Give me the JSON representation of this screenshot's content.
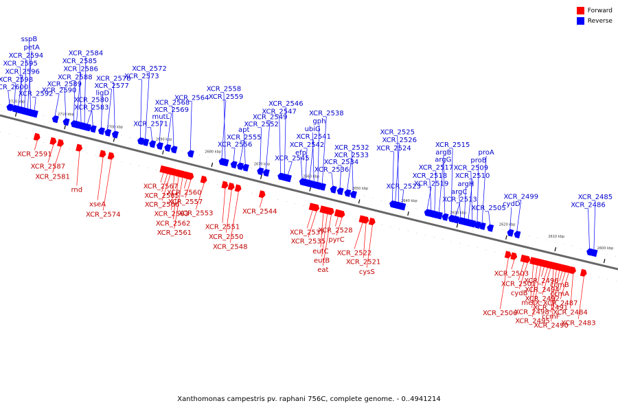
{
  "legend": {
    "forward": {
      "label": "Forward",
      "color": "#ff0000"
    },
    "reverse": {
      "label": "Reverse",
      "color": "#0000ff"
    }
  },
  "caption": "Xanthomonas campestris pv. raphani 756C, complete genome. - 0..4941214",
  "scale": {
    "kbp_start": 2723,
    "kbp_end": 2597,
    "ticks": [
      "2720 kbp",
      "2710 kbp",
      "2700 kbp",
      "2690 kbp",
      "2680 kbp",
      "2670 kbp",
      "2660 kbp",
      "2650 kbp",
      "2640 kbp",
      "2630 kbp",
      "2620 kbp",
      "2610 kbp",
      "2600 kbp"
    ]
  },
  "reverse_genes": [
    {
      "name": "XCR_2600",
      "kbp": 2721.6
    },
    {
      "name": "XCR_2598",
      "kbp": 2720.6
    },
    {
      "name": "XCR_2596",
      "kbp": 2719.8
    },
    {
      "name": "XCR_2595",
      "kbp": 2719.1
    },
    {
      "name": "XCR_2594",
      "kbp": 2718.5
    },
    {
      "name": "petA",
      "kbp": 2717.9
    },
    {
      "name": "sspB",
      "kbp": 2717.3
    },
    {
      "name": "XCR_2592",
      "kbp": 2716.5
    },
    {
      "name": "XCR_2590",
      "kbp": 2712.3
    },
    {
      "name": "XCR_2589",
      "kbp": 2710.1
    },
    {
      "name": "XCR_2588",
      "kbp": 2708.5
    },
    {
      "name": "XCR_2586",
      "kbp": 2707.9
    },
    {
      "name": "XCR_2585",
      "kbp": 2707.0
    },
    {
      "name": "XCR_2584",
      "kbp": 2706.3
    },
    {
      "name": "XCR_2583",
      "kbp": 2705.7
    },
    {
      "name": "XCR_2580",
      "kbp": 2704.6
    },
    {
      "name": "ligD",
      "kbp": 2702.9
    },
    {
      "name": "XCR_2577",
      "kbp": 2701.6
    },
    {
      "name": "XCR_2576",
      "kbp": 2700.1
    },
    {
      "name": "XCR_2573",
      "kbp": 2694.9
    },
    {
      "name": "XCR_2572",
      "kbp": 2693.9
    },
    {
      "name": "XCR_2571",
      "kbp": 2692.5
    },
    {
      "name": "mutL",
      "kbp": 2691.0
    },
    {
      "name": "XCR_2569",
      "kbp": 2689.4
    },
    {
      "name": "XCR_2568",
      "kbp": 2688.1
    },
    {
      "name": "XCR_2564",
      "kbp": 2684.7
    },
    {
      "name": "XCR_2559",
      "kbp": 2678.3
    },
    {
      "name": "XCR_2558",
      "kbp": 2677.6
    },
    {
      "name": "XCR_2556",
      "kbp": 2675.9
    },
    {
      "name": "XCR_2555",
      "kbp": 2674.6
    },
    {
      "name": "apt",
      "kbp": 2673.5
    },
    {
      "name": "XCR_2552",
      "kbp": 2670.5
    },
    {
      "name": "XCR_2549",
      "kbp": 2669.3
    },
    {
      "name": "XCR_2547",
      "kbp": 2666.3
    },
    {
      "name": "XCR_2546",
      "kbp": 2665.5
    },
    {
      "name": "XCR_2545",
      "kbp": 2664.8
    },
    {
      "name": "efp",
      "kbp": 2661.9
    },
    {
      "name": "XCR_2542",
      "kbp": 2661.2
    },
    {
      "name": "XCR_2541",
      "kbp": 2660.4
    },
    {
      "name": "ubiG",
      "kbp": 2659.5
    },
    {
      "name": "gph",
      "kbp": 2658.7
    },
    {
      "name": "XCR_2538",
      "kbp": 2657.8
    },
    {
      "name": "XCR_2536",
      "kbp": 2655.6
    },
    {
      "name": "XCR_2534",
      "kbp": 2654.2
    },
    {
      "name": "XCR_2533",
      "kbp": 2652.7
    },
    {
      "name": "XCR_2532",
      "kbp": 2651.5
    },
    {
      "name": "XCR_2524",
      "kbp": 2643.5
    },
    {
      "name": "XCR_2526",
      "kbp": 2642.9
    },
    {
      "name": "XCR_2525",
      "kbp": 2642.2
    },
    {
      "name": "XCR_2523",
      "kbp": 2641.5
    },
    {
      "name": "XCR_2519",
      "kbp": 2636.4
    },
    {
      "name": "XCR_2518",
      "kbp": 2635.6
    },
    {
      "name": "XCR_2517",
      "kbp": 2634.9
    },
    {
      "name": "argG",
      "kbp": 2634.0
    },
    {
      "name": "argB",
      "kbp": 2632.8
    },
    {
      "name": "XCR_2515",
      "kbp": 2631.5
    },
    {
      "name": "XCR_2513",
      "kbp": 2630.6
    },
    {
      "name": "argC",
      "kbp": 2629.6
    },
    {
      "name": "argH",
      "kbp": 2628.8
    },
    {
      "name": "XCR_2510",
      "kbp": 2628.0
    },
    {
      "name": "XCR_2509",
      "kbp": 2627.2
    },
    {
      "name": "proB",
      "kbp": 2626.2
    },
    {
      "name": "proA",
      "kbp": 2625.2
    },
    {
      "name": "XCR_2505",
      "kbp": 2623.6
    },
    {
      "name": "cydD",
      "kbp": 2619.5
    },
    {
      "name": "XCR_2499",
      "kbp": 2618.1
    },
    {
      "name": "XCR_2486",
      "kbp": 2603.3
    },
    {
      "name": "XCR_2485",
      "kbp": 2602.4
    }
  ],
  "forward_genes": [
    {
      "name": "XCR_2591",
      "kbp": 2714.8
    },
    {
      "name": "XCR_2587",
      "kbp": 2711.5
    },
    {
      "name": "XCR_2581",
      "kbp": 2710.0
    },
    {
      "name": "rnd",
      "kbp": 2706.2
    },
    {
      "name": "xseA",
      "kbp": 2701.4
    },
    {
      "name": "XCR_2574",
      "kbp": 2699.7
    },
    {
      "name": "XCR_2567",
      "kbp": 2689.1
    },
    {
      "name": "XCR_2565",
      "kbp": 2688.3
    },
    {
      "name": "XCR_2566",
      "kbp": 2687.7
    },
    {
      "name": "XCR_2563",
      "kbp": 2686.9
    },
    {
      "name": "XCR_2562",
      "kbp": 2686.0
    },
    {
      "name": "XCR_2561",
      "kbp": 2685.2
    },
    {
      "name": "XCR_2560",
      "kbp": 2684.3
    },
    {
      "name": "XCR_2557",
      "kbp": 2683.5
    },
    {
      "name": "XCR_2553",
      "kbp": 2680.8
    },
    {
      "name": "XCR_2551",
      "kbp": 2676.5
    },
    {
      "name": "XCR_2550",
      "kbp": 2675.2
    },
    {
      "name": "XCR_2548",
      "kbp": 2673.8
    },
    {
      "name": "XCR_2544",
      "kbp": 2668.9
    },
    {
      "name": "XCR_2537",
      "kbp": 2658.7
    },
    {
      "name": "XCR_2535",
      "kbp": 2657.9
    },
    {
      "name": "eutC",
      "kbp": 2656.5
    },
    {
      "name": "eutB",
      "kbp": 2655.7
    },
    {
      "name": "eat",
      "kbp": 2654.9
    },
    {
      "name": "XCR_2528",
      "kbp": 2653.5
    },
    {
      "name": "pyrC",
      "kbp": 2652.7
    },
    {
      "name": "XCR_2522",
      "kbp": 2648.5
    },
    {
      "name": "XCR_2521",
      "kbp": 2647.8
    },
    {
      "name": "cysS",
      "kbp": 2646.5
    },
    {
      "name": "XCR_2506",
      "kbp": 2618.8
    },
    {
      "name": "XCR_2503",
      "kbp": 2617.6
    },
    {
      "name": "XCR_2501",
      "kbp": 2615.6
    },
    {
      "name": "cydB",
      "kbp": 2614.9
    },
    {
      "name": "metX",
      "kbp": 2613.7
    },
    {
      "name": "XCR_2498",
      "kbp": 2612.9
    },
    {
      "name": "XCR_2495",
      "kbp": 2612.2
    },
    {
      "name": "XCR_2496",
      "kbp": 2611.5
    },
    {
      "name": "XCR_2494",
      "kbp": 2610.8
    },
    {
      "name": "XCR_2492",
      "kbp": 2610.2
    },
    {
      "name": "XCR_2491",
      "kbp": 2609.6
    },
    {
      "name": "ccmF",
      "kbp": 2609.0
    },
    {
      "name": "XCR_2490",
      "kbp": 2608.4
    },
    {
      "name": "ccmB",
      "kbp": 2607.8
    },
    {
      "name": "ccmA",
      "kbp": 2607.2
    },
    {
      "name": "XCR_2487",
      "kbp": 2606.5
    },
    {
      "name": "XCR_2484",
      "kbp": 2605.6
    },
    {
      "name": "XCR_2483",
      "kbp": 2603.4
    }
  ]
}
